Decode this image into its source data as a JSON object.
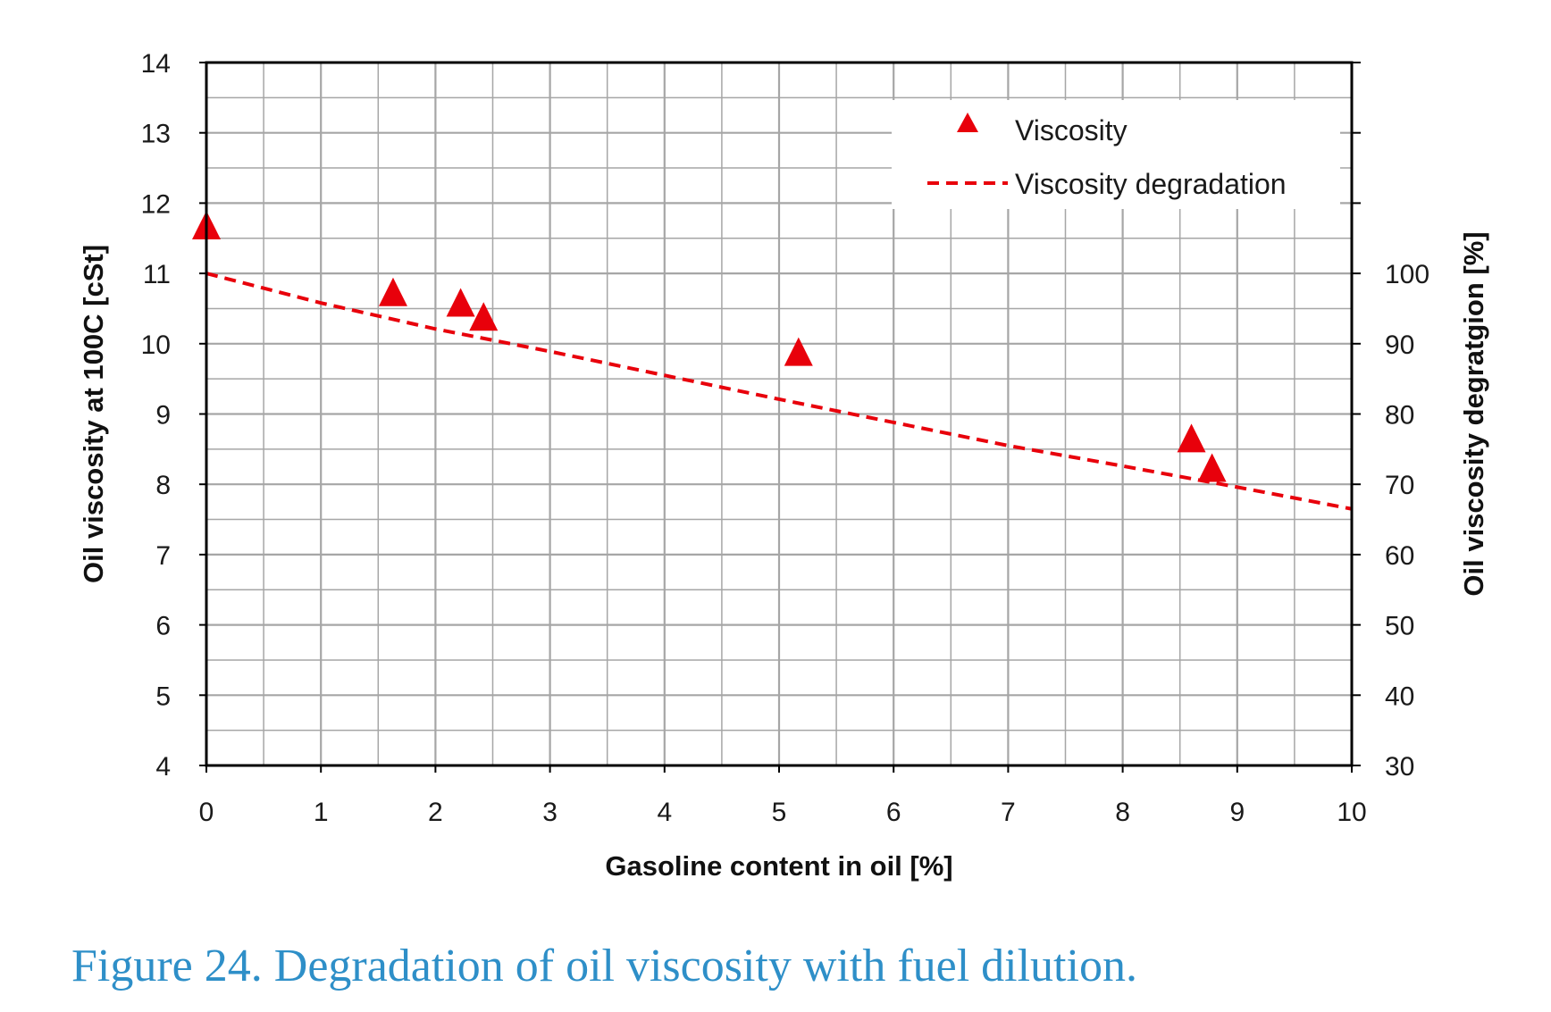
{
  "caption": "Figure 24. Degradation of oil viscosity with fuel dilution.",
  "chart_data": {
    "type": "scatter",
    "title": "",
    "xlabel": "Gasoline content in oil [%]",
    "ylabel": "Oil viscosity at 100C  [cSt]",
    "y2label": "Oil viscosity degratgion  [%]",
    "xlim": [
      0,
      10
    ],
    "ylim": [
      4,
      14
    ],
    "y2lim": [
      30,
      130
    ],
    "x_ticks": [
      "0",
      "1",
      "2",
      "3",
      "4",
      "5",
      "6",
      "7",
      "8",
      "9",
      "10"
    ],
    "y_ticks": [
      "4",
      "5",
      "6",
      "7",
      "8",
      "9",
      "10",
      "11",
      "12",
      "13",
      "14"
    ],
    "y2_ticks": [
      "30",
      "40",
      "50",
      "60",
      "70",
      "80",
      "90",
      "100"
    ],
    "grid": true,
    "legend_position": "top-right",
    "colors": {
      "series": "#e8000b",
      "grid": "#a6a6a6",
      "axis": "#000000"
    },
    "series": [
      {
        "name": "Viscosity",
        "type": "scatter",
        "marker": "triangle",
        "axis": "left",
        "x": [
          0.0,
          1.63,
          2.22,
          2.42,
          5.17,
          8.6,
          8.78
        ],
        "y": [
          11.65,
          10.7,
          10.55,
          10.35,
          9.85,
          8.62,
          8.2
        ]
      },
      {
        "name": "Viscosity degradation",
        "type": "line",
        "style": "dashed",
        "axis": "right",
        "x": [
          0,
          1,
          2,
          3,
          4,
          5,
          6,
          7,
          8,
          9,
          10
        ],
        "y": [
          100,
          95.8,
          92.1,
          88.9,
          85.5,
          82.1,
          78.8,
          75.5,
          72.6,
          69.6,
          66.5
        ]
      }
    ]
  }
}
